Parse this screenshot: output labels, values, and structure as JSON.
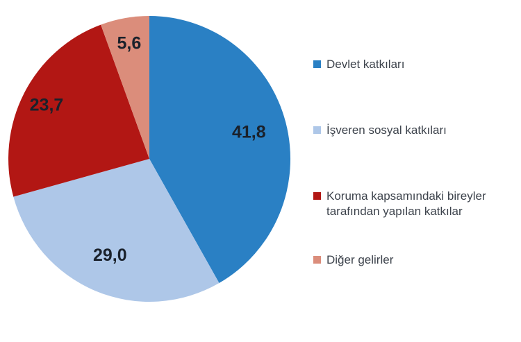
{
  "chart_data": {
    "type": "pie",
    "title": "",
    "legend_position": "right",
    "direction": "clockwise",
    "start_angle_deg": 0,
    "value_label_color": "#1a212b",
    "decimal_separator": ",",
    "slices": [
      {
        "label": "Devlet katkıları",
        "value": 41.8,
        "display": "41,8",
        "color": "#2a80c4"
      },
      {
        "label": "İşveren sosyal katkıları",
        "value": 29.0,
        "display": "29,0",
        "color": "#aec7e8"
      },
      {
        "label": "Koruma kapsamındaki bireyler tarafından yapılan katkılar",
        "value": 23.7,
        "display": "23,7",
        "color": "#b21714"
      },
      {
        "label": "Diğer gelirler",
        "value": 5.6,
        "display": "5,6",
        "color": "#db8d7b"
      }
    ]
  }
}
